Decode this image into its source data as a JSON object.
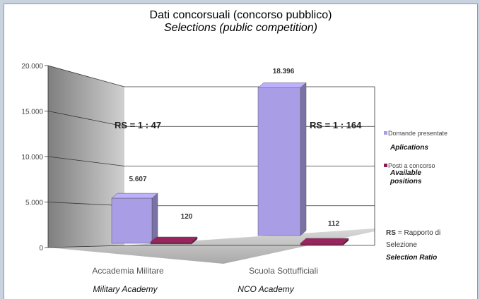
{
  "chart_data": {
    "type": "bar",
    "title": "Dati concorsuali (concorso pubblico)",
    "subtitle": "Selections (public competition)",
    "categories": [
      "Accademia Militare",
      "Scuola Sottufficiali"
    ],
    "categories_en": [
      "Military Academy",
      "NCO Academy"
    ],
    "series": [
      {
        "name": "Domande presentate",
        "name_en": "Aplications",
        "values": [
          5607,
          18396
        ],
        "value_labels": [
          "5.607",
          "18.396"
        ],
        "color": "#a99ee6"
      },
      {
        "name": "Posti a concorso",
        "name_en": "Available positions",
        "values": [
          120,
          112
        ],
        "value_labels": [
          "120",
          "112"
        ],
        "color": "#8b1f55"
      }
    ],
    "y_ticks": [
      0,
      5000,
      10000,
      15000,
      20000
    ],
    "y_tick_labels": [
      "0",
      "5.000",
      "10.000",
      "15.000",
      "20.000"
    ],
    "ylim": [
      0,
      20000
    ],
    "grid": true,
    "legend": "right",
    "annotations": [
      "RS = 1 : 47",
      "RS = 1 : 164"
    ],
    "ratio_legend": {
      "key": "RS",
      "line1": "= Rapporto di",
      "line2": "Selezione",
      "line3": "Selection Ratio"
    }
  }
}
